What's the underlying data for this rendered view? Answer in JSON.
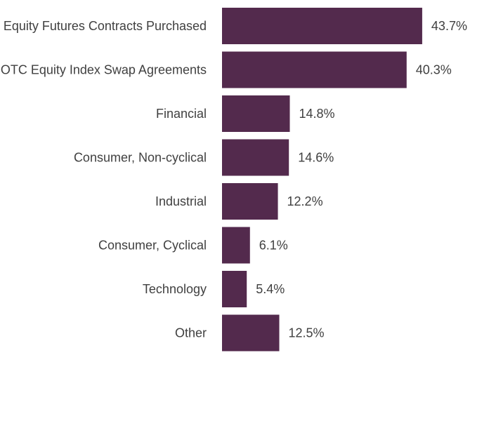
{
  "chart_data": {
    "type": "bar",
    "orientation": "horizontal",
    "categories": [
      "Equity Futures Contracts Purchased",
      "OTC Equity Index Swap Agreements",
      "Financial",
      "Consumer, Non-cyclical",
      "Industrial",
      "Consumer, Cyclical",
      "Technology",
      "Other"
    ],
    "values": [
      43.7,
      40.3,
      14.8,
      14.6,
      12.2,
      6.1,
      5.4,
      12.5
    ],
    "value_labels": [
      "43.7%",
      "40.3%",
      "14.8%",
      "14.6%",
      "12.2%",
      "6.1%",
      "5.4%",
      "12.5%"
    ],
    "title": "",
    "xlabel": "",
    "ylabel": "",
    "xlim": [
      0,
      45
    ],
    "grid": false,
    "legend": "none",
    "bar_color": "#532a4d"
  }
}
